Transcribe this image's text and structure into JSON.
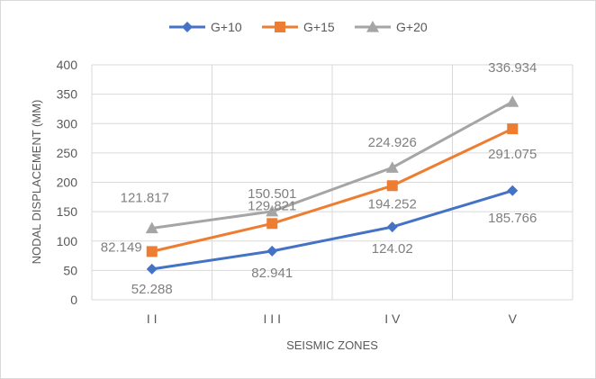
{
  "chart_data": {
    "type": "line",
    "title": "",
    "xlabel": "SEISMIC ZONES",
    "ylabel": "NODAL DISPLACEMENT (MM)",
    "categories": [
      "II",
      "III",
      "IV",
      "V"
    ],
    "ylim": [
      0,
      400
    ],
    "y_ticks": [
      "0",
      "50",
      "100",
      "150",
      "200",
      "250",
      "300",
      "350",
      "400"
    ],
    "grid": true,
    "legend_position": "top",
    "series": [
      {
        "name": "G+10",
        "marker": "diamond",
        "color": "#4472c4",
        "values": [
          52.288,
          82.941,
          124.02,
          185.766
        ],
        "labels": [
          "52.288",
          "82.941",
          "124.02",
          "185.766"
        ]
      },
      {
        "name": "G+15",
        "marker": "square",
        "color": "#ed7d31",
        "values": [
          82.149,
          129.821,
          194.252,
          291.075
        ],
        "labels": [
          "82.149",
          "129.821",
          "194.252",
          "291.075"
        ]
      },
      {
        "name": "G+20",
        "marker": "triangle",
        "color": "#a5a5a5",
        "values": [
          121.817,
          150.501,
          224.926,
          336.934
        ],
        "labels": [
          "121.817",
          "150.501",
          "224.926",
          "336.934"
        ]
      }
    ]
  }
}
